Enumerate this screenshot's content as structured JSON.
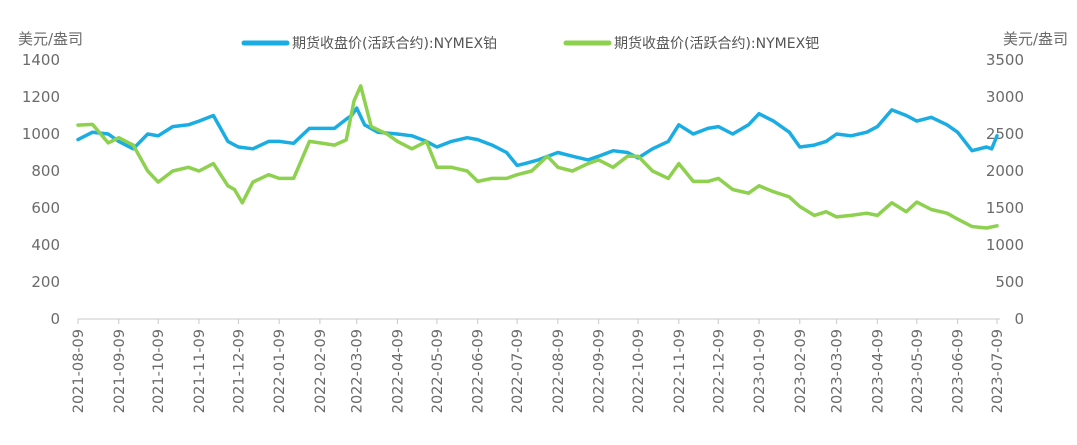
{
  "chart_data": {
    "type": "line",
    "title": "",
    "left_unit": "美元/盎司",
    "right_unit": "美元/盎司",
    "ylim_left": [
      0,
      1400
    ],
    "ylim_right": [
      0,
      3500
    ],
    "yticks_left": [
      "0",
      "200",
      "400",
      "600",
      "800",
      "1000",
      "1200",
      "1400"
    ],
    "yticks_right": [
      "0",
      "500",
      "1000",
      "1500",
      "2000",
      "2500",
      "3000",
      "3500"
    ],
    "grid": false,
    "legend_position": "top",
    "categories": [
      "2021-08-09",
      "2021-09-09",
      "2021-10-09",
      "2021-11-09",
      "2021-12-09",
      "2022-01-09",
      "2022-02-09",
      "2022-03-09",
      "2022-04-09",
      "2022-05-09",
      "2022-06-09",
      "2022-07-09",
      "2022-08-09",
      "2022-09-09",
      "2022-10-09",
      "2022-11-09",
      "2022-12-09",
      "2023-01-09",
      "2023-02-09",
      "2023-03-09",
      "2023-04-09",
      "2023-05-09",
      "2023-06-09",
      "2023-07-09"
    ],
    "series": [
      {
        "name": "期货收盘价(活跃合约):NYMEX铂",
        "axis": "left",
        "color": "#1AADE4",
        "x": [
          "2021-08-09",
          "2021-08-20",
          "2021-09-01",
          "2021-09-09",
          "2021-09-20",
          "2021-10-01",
          "2021-10-09",
          "2021-10-20",
          "2021-11-01",
          "2021-11-09",
          "2021-11-20",
          "2021-12-01",
          "2021-12-09",
          "2021-12-20",
          "2022-01-01",
          "2022-01-09",
          "2022-01-20",
          "2022-02-01",
          "2022-02-09",
          "2022-02-20",
          "2022-03-01",
          "2022-03-05",
          "2022-03-09",
          "2022-03-15",
          "2022-03-25",
          "2022-04-09",
          "2022-04-20",
          "2022-05-01",
          "2022-05-09",
          "2022-05-20",
          "2022-06-01",
          "2022-06-09",
          "2022-06-20",
          "2022-07-01",
          "2022-07-09",
          "2022-07-15",
          "2022-07-25",
          "2022-08-09",
          "2022-08-20",
          "2022-09-01",
          "2022-09-09",
          "2022-09-20",
          "2022-10-01",
          "2022-10-09",
          "2022-10-20",
          "2022-11-01",
          "2022-11-09",
          "2022-11-20",
          "2022-12-01",
          "2022-12-09",
          "2022-12-20",
          "2023-01-01",
          "2023-01-09",
          "2023-01-20",
          "2023-02-01",
          "2023-02-09",
          "2023-02-20",
          "2023-03-01",
          "2023-03-09",
          "2023-03-20",
          "2023-04-01",
          "2023-04-09",
          "2023-04-20",
          "2023-05-01",
          "2023-05-09",
          "2023-05-20",
          "2023-06-01",
          "2023-06-09",
          "2023-06-20",
          "2023-07-01",
          "2023-07-05",
          "2023-07-09"
        ],
        "values": [
          970,
          1010,
          1000,
          960,
          920,
          1000,
          990,
          1040,
          1050,
          1070,
          1100,
          960,
          930,
          920,
          960,
          960,
          950,
          1030,
          1030,
          1030,
          1080,
          1100,
          1140,
          1050,
          1010,
          1000,
          990,
          960,
          930,
          960,
          980,
          970,
          940,
          900,
          830,
          840,
          860,
          900,
          880,
          860,
          880,
          910,
          900,
          870,
          920,
          960,
          1050,
          1000,
          1030,
          1040,
          1000,
          1050,
          1110,
          1070,
          1010,
          930,
          940,
          960,
          1000,
          990,
          1010,
          1040,
          1130,
          1100,
          1070,
          1090,
          1050,
          1010,
          910,
          930,
          920,
          990
        ]
      },
      {
        "name": "期货收盘价(活跃合约):NYMEX钯",
        "axis": "right",
        "color": "#8DD14E",
        "x": [
          "2021-08-09",
          "2021-08-20",
          "2021-09-01",
          "2021-09-09",
          "2021-09-20",
          "2021-10-01",
          "2021-10-09",
          "2021-10-20",
          "2021-11-01",
          "2021-11-09",
          "2021-11-20",
          "2021-12-01",
          "2021-12-06",
          "2021-12-12",
          "2021-12-20",
          "2022-01-01",
          "2022-01-09",
          "2022-01-20",
          "2022-02-01",
          "2022-02-09",
          "2022-02-20",
          "2022-03-01",
          "2022-03-07",
          "2022-03-12",
          "2022-03-20",
          "2022-04-01",
          "2022-04-09",
          "2022-04-20",
          "2022-05-01",
          "2022-05-09",
          "2022-05-20",
          "2022-06-01",
          "2022-06-09",
          "2022-06-20",
          "2022-07-01",
          "2022-07-09",
          "2022-07-20",
          "2022-08-01",
          "2022-08-09",
          "2022-08-20",
          "2022-09-01",
          "2022-09-09",
          "2022-09-20",
          "2022-10-01",
          "2022-10-09",
          "2022-10-20",
          "2022-11-01",
          "2022-11-09",
          "2022-11-20",
          "2022-12-01",
          "2022-12-09",
          "2022-12-20",
          "2023-01-01",
          "2023-01-09",
          "2023-01-20",
          "2023-02-01",
          "2023-02-09",
          "2023-02-20",
          "2023-03-01",
          "2023-03-09",
          "2023-03-20",
          "2023-04-01",
          "2023-04-09",
          "2023-04-20",
          "2023-05-01",
          "2023-05-09",
          "2023-05-20",
          "2023-06-01",
          "2023-06-09",
          "2023-06-20",
          "2023-07-01",
          "2023-07-09"
        ],
        "values": [
          2620,
          2630,
          2380,
          2450,
          2350,
          2000,
          1850,
          2000,
          2050,
          2000,
          2100,
          1800,
          1750,
          1570,
          1850,
          1950,
          1900,
          1900,
          2400,
          2380,
          2350,
          2420,
          2950,
          3150,
          2600,
          2500,
          2400,
          2300,
          2400,
          2050,
          2050,
          2000,
          1860,
          1900,
          1900,
          1950,
          2000,
          2200,
          2050,
          2000,
          2100,
          2150,
          2050,
          2200,
          2200,
          2000,
          1900,
          2100,
          1860,
          1860,
          1900,
          1750,
          1700,
          1800,
          1720,
          1650,
          1520,
          1400,
          1450,
          1380,
          1400,
          1430,
          1400,
          1570,
          1450,
          1580,
          1480,
          1430,
          1350,
          1250,
          1230,
          1260
        ]
      }
    ]
  }
}
